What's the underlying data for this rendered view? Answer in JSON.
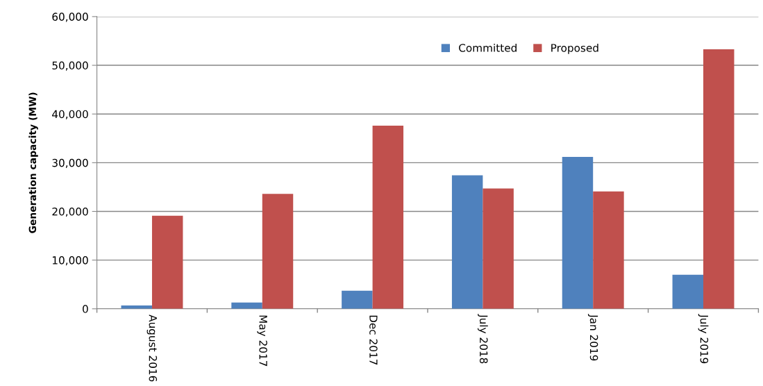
{
  "chart_data": {
    "type": "bar",
    "ylabel": "Generation capacity (MW)",
    "categories": [
      "August 2016",
      "May 2017",
      "Dec 2017",
      "July 2018",
      "Jan 2019",
      "July 2019"
    ],
    "series": [
      {
        "name": "Committed",
        "color": "#4f81bd",
        "values": [
          700,
          1300,
          3700,
          27400,
          31200,
          7000
        ]
      },
      {
        "name": "Proposed",
        "color": "#c0504d",
        "values": [
          19100,
          23600,
          37600,
          24700,
          24100,
          53300
        ]
      }
    ],
    "ylim": [
      0,
      60000
    ],
    "yticks": [
      {
        "value": 0,
        "label": "0"
      },
      {
        "value": 10000,
        "label": "10,000"
      },
      {
        "value": 20000,
        "label": "20,000"
      },
      {
        "value": 30000,
        "label": "30,000"
      },
      {
        "value": 40000,
        "label": "40,000"
      },
      {
        "value": 50000,
        "label": "50,000"
      },
      {
        "value": 60000,
        "label": "60,000"
      }
    ],
    "grid": "y",
    "legend": "top"
  }
}
